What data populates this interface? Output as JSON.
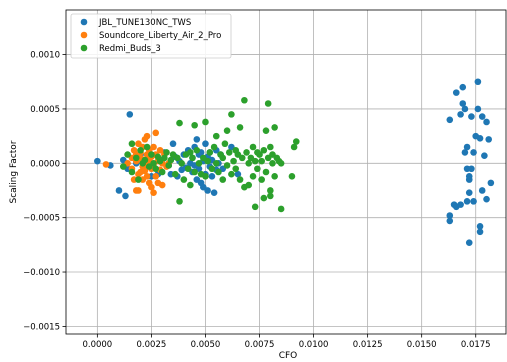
{
  "chart_data": {
    "type": "scatter",
    "xlabel": "CFO",
    "ylabel": "Scaling Factor",
    "xlim": [
      -0.00145,
      0.0189
    ],
    "ylim": [
      -0.00157,
      0.00141
    ],
    "xticks": [
      0.0,
      0.0025,
      0.005,
      0.0075,
      0.01,
      0.0125,
      0.015,
      0.0175
    ],
    "xtick_labels": [
      "0.0000",
      "0.0025",
      "0.0050",
      "0.0075",
      "0.0100",
      "0.0125",
      "0.0150",
      "0.0175"
    ],
    "yticks": [
      -0.0015,
      -0.001,
      -0.0005,
      0.0,
      0.0005,
      0.001
    ],
    "ytick_labels": [
      "−0.0015",
      "−0.0010",
      "−0.0005",
      "0.0000",
      "0.0005",
      "0.0010"
    ],
    "grid": true,
    "legend_position": "top-left",
    "series": [
      {
        "name": "JBL_TUNE130NC_TWS",
        "color": "#1f77b4",
        "points": [
          [
            0.0,
            2e-05
          ],
          [
            0.0006,
            -2e-05
          ],
          [
            0.001,
            -0.00025
          ],
          [
            0.0012,
            3e-05
          ],
          [
            0.0013,
            -0.0003
          ],
          [
            0.0014,
            -5e-05
          ],
          [
            0.0015,
            0.00045
          ],
          [
            0.0018,
            0.0
          ],
          [
            0.002,
            8e-05
          ],
          [
            0.0022,
            -5e-05
          ],
          [
            0.0025,
            -0.00012
          ],
          [
            0.0028,
            -0.0001
          ],
          [
            0.003,
            3e-05
          ],
          [
            0.0031,
            0.0001
          ],
          [
            0.0033,
            -2e-05
          ],
          [
            0.0034,
            -0.0001
          ],
          [
            0.0035,
            0.00018
          ],
          [
            0.0036,
            6e-05
          ],
          [
            0.0037,
            -0.00012
          ],
          [
            0.0038,
            2e-05
          ],
          [
            0.0039,
            -6e-05
          ],
          [
            0.004,
            8e-05
          ],
          [
            0.0041,
            -4e-05
          ],
          [
            0.0042,
            0.00012
          ],
          [
            0.0043,
            0.0
          ],
          [
            0.0044,
            5e-05
          ],
          [
            0.0044,
            -8e-05
          ],
          [
            0.0045,
            0.00015
          ],
          [
            0.0045,
            -2e-05
          ],
          [
            0.0046,
            -0.00015
          ],
          [
            0.0046,
            0.00022
          ],
          [
            0.0047,
            8e-05
          ],
          [
            0.0047,
            -5e-05
          ],
          [
            0.0048,
            0.0001
          ],
          [
            0.0048,
            -0.00018
          ],
          [
            0.0049,
            2e-05
          ],
          [
            0.0049,
            -0.00022
          ],
          [
            0.005,
            0.00018
          ],
          [
            0.005,
            -0.0001
          ],
          [
            0.0051,
            6e-05
          ],
          [
            0.0051,
            -0.00025
          ],
          [
            0.0052,
            0.0001
          ],
          [
            0.0052,
            -3e-05
          ],
          [
            0.0053,
            3e-05
          ],
          [
            0.0053,
            -0.00012
          ],
          [
            0.0054,
            -0.00027
          ],
          [
            0.0055,
            0.00012
          ],
          [
            0.0055,
            -6e-05
          ],
          [
            0.0056,
            0.0
          ],
          [
            0.0057,
            8e-05
          ],
          [
            0.0058,
            -5e-05
          ],
          [
            0.0062,
            0.00015
          ],
          [
            0.0065,
            -0.0001
          ],
          [
            0.0163,
            0.0004
          ],
          [
            0.0163,
            -0.00048
          ],
          [
            0.0163,
            -0.00053
          ],
          [
            0.0165,
            -0.00038
          ],
          [
            0.0166,
            -0.0004
          ],
          [
            0.0166,
            0.00065
          ],
          [
            0.0168,
            -0.00038
          ],
          [
            0.0168,
            0.00045
          ],
          [
            0.0169,
            0.0007
          ],
          [
            0.0169,
            0.00055
          ],
          [
            0.017,
            0.0005
          ],
          [
            0.017,
            0.0001
          ],
          [
            0.0171,
            -5e-05
          ],
          [
            0.0171,
            0.00015
          ],
          [
            0.0171,
            -0.00035
          ],
          [
            0.0172,
            -0.00012
          ],
          [
            0.0172,
            -0.00015
          ],
          [
            0.0172,
            -0.00027
          ],
          [
            0.0172,
            -0.00073
          ],
          [
            0.0173,
            -5e-05
          ],
          [
            0.0173,
            0.00043
          ],
          [
            0.0174,
            0.0001
          ],
          [
            0.0174,
            -0.00035
          ],
          [
            0.0175,
            0.00025
          ],
          [
            0.0176,
            0.00075
          ],
          [
            0.0176,
            0.0005
          ],
          [
            0.0177,
            0.00023
          ],
          [
            0.0177,
            -0.00058
          ],
          [
            0.0177,
            -0.00063
          ],
          [
            0.0178,
            0.00043
          ],
          [
            0.0178,
            -0.00025
          ],
          [
            0.0179,
            7e-05
          ],
          [
            0.018,
            0.00038
          ],
          [
            0.018,
            -0.00033
          ],
          [
            0.0181,
            0.00022
          ],
          [
            0.0182,
            -0.00018
          ]
        ]
      },
      {
        "name": "Soundcore_Liberty_Air_2_Pro",
        "color": "#ff7f0e",
        "points": [
          [
            0.0004,
            -1e-05
          ],
          [
            0.0014,
            0.0
          ],
          [
            0.0016,
            5e-05
          ],
          [
            0.0016,
            -5e-05
          ],
          [
            0.0017,
            0.00012
          ],
          [
            0.0017,
            -0.00015
          ],
          [
            0.0018,
            2e-05
          ],
          [
            0.0018,
            -0.00025
          ],
          [
            0.0018,
            8e-05
          ],
          [
            0.0019,
            -0.0001
          ],
          [
            0.0019,
            0.00018
          ],
          [
            0.0019,
            -0.00025
          ],
          [
            0.002,
            5e-05
          ],
          [
            0.002,
            -8e-05
          ],
          [
            0.002,
            0.0001
          ],
          [
            0.0021,
            2e-05
          ],
          [
            0.0021,
            -3e-05
          ],
          [
            0.0021,
            0.00015
          ],
          [
            0.0021,
            -0.00015
          ],
          [
            0.0022,
            0.00022
          ],
          [
            0.0022,
            0.0
          ],
          [
            0.0022,
            -7e-05
          ],
          [
            0.0023,
            8e-05
          ],
          [
            0.0023,
            -0.00012
          ],
          [
            0.0023,
            0.00025
          ],
          [
            0.0024,
            3e-05
          ],
          [
            0.0024,
            -0.00018
          ],
          [
            0.0024,
            0.00012
          ],
          [
            0.0025,
            -5e-05
          ],
          [
            0.0025,
            6e-05
          ],
          [
            0.0025,
            -0.00022
          ],
          [
            0.0026,
            0.00015
          ],
          [
            0.0026,
            -2e-05
          ],
          [
            0.0026,
            -0.00027
          ],
          [
            0.0027,
            8e-05
          ],
          [
            0.0027,
            -0.00012
          ],
          [
            0.0027,
            0.00028
          ],
          [
            0.0028,
            2e-05
          ],
          [
            0.0028,
            -0.00018
          ],
          [
            0.0029,
            0.00012
          ],
          [
            0.0029,
            -6e-05
          ],
          [
            0.003,
            0.0
          ],
          [
            0.003,
            -0.0002
          ],
          [
            0.0031,
            8e-05
          ],
          [
            0.0032,
            -3e-05
          ],
          [
            0.0033,
            0.0
          ]
        ]
      },
      {
        "name": "Redmi_Buds_3",
        "color": "#2ca02c",
        "points": [
          [
            0.0012,
            -3e-05
          ],
          [
            0.0014,
            8e-05
          ],
          [
            0.0016,
            0.00018
          ],
          [
            0.0016,
            -8e-05
          ],
          [
            0.0018,
            5e-05
          ],
          [
            0.0019,
            -0.00015
          ],
          [
            0.002,
            0.00012
          ],
          [
            0.0021,
            0.0
          ],
          [
            0.0022,
            3e-05
          ],
          [
            0.0023,
            0.00015
          ],
          [
            0.0024,
            -3e-05
          ],
          [
            0.0025,
            8e-05
          ],
          [
            0.0026,
            0.0
          ],
          [
            0.0027,
            -5e-05
          ],
          [
            0.0028,
            6e-05
          ],
          [
            0.0029,
            2e-05
          ],
          [
            0.003,
            -8e-05
          ],
          [
            0.0031,
            5e-05
          ],
          [
            0.0032,
            0.0001
          ],
          [
            0.0033,
            -2e-05
          ],
          [
            0.0034,
            3e-05
          ],
          [
            0.0035,
            8e-05
          ],
          [
            0.0036,
            -0.0001
          ],
          [
            0.0037,
            5e-05
          ],
          [
            0.0038,
            0.00037
          ],
          [
            0.0038,
            -0.00035
          ],
          [
            0.0039,
            0.0
          ],
          [
            0.004,
            -0.00015
          ],
          [
            0.0041,
            8e-05
          ],
          [
            0.0042,
            -5e-05
          ],
          [
            0.0043,
            0.0001
          ],
          [
            0.0043,
            -0.0002
          ],
          [
            0.0044,
            5e-05
          ],
          [
            0.0045,
            0.00035
          ],
          [
            0.0045,
            -8e-05
          ],
          [
            0.0046,
            0.00012
          ],
          [
            0.0047,
            0.0
          ],
          [
            0.0048,
            -0.0001
          ],
          [
            0.0049,
            5e-05
          ],
          [
            0.005,
            0.00038
          ],
          [
            0.005,
            -0.00012
          ],
          [
            0.0051,
            2e-05
          ],
          [
            0.0052,
            0.0001
          ],
          [
            0.0053,
            -5e-05
          ],
          [
            0.0054,
            0.00015
          ],
          [
            0.0055,
            0.0
          ],
          [
            0.0055,
            0.00025
          ],
          [
            0.0056,
            -8e-05
          ],
          [
            0.0057,
            8e-05
          ],
          [
            0.0058,
            -0.00015
          ],
          [
            0.0058,
            5e-05
          ],
          [
            0.0059,
            0.00018
          ],
          [
            0.006,
            -2e-05
          ],
          [
            0.006,
            0.0003
          ],
          [
            0.0061,
            0.0001
          ],
          [
            0.0062,
            -0.0001
          ],
          [
            0.0062,
            0.00045
          ],
          [
            0.0063,
            2e-05
          ],
          [
            0.0064,
            0.00012
          ],
          [
            0.0064,
            -5e-05
          ],
          [
            0.0065,
            8e-05
          ],
          [
            0.0066,
            0.00033
          ],
          [
            0.0066,
            -0.00015
          ],
          [
            0.0067,
            5e-05
          ],
          [
            0.0068,
            0.00058
          ],
          [
            0.0068,
            -0.00022
          ],
          [
            0.0069,
            0.0001
          ],
          [
            0.007,
            0.0
          ],
          [
            0.007,
            -0.0002
          ],
          [
            0.0071,
            5e-05
          ],
          [
            0.0072,
            0.00015
          ],
          [
            0.0072,
            -0.00012
          ],
          [
            0.0073,
            -0.0004
          ],
          [
            0.0073,
            2e-05
          ],
          [
            0.0074,
            0.0001
          ],
          [
            0.0074,
            -5e-05
          ],
          [
            0.0075,
            8e-05
          ],
          [
            0.0076,
            -0.00015
          ],
          [
            0.0076,
            2e-05
          ],
          [
            0.0077,
            -0.00032
          ],
          [
            0.0077,
            0.00012
          ],
          [
            0.0078,
            0.0003
          ],
          [
            0.0078,
            -8e-05
          ],
          [
            0.0079,
            0.00055
          ],
          [
            0.0079,
            5e-05
          ],
          [
            0.008,
            -0.00025
          ],
          [
            0.008,
            0.00015
          ],
          [
            0.008,
            -0.0003
          ],
          [
            0.0081,
            8e-05
          ],
          [
            0.0081,
            0.0
          ],
          [
            0.0082,
            0.00033
          ],
          [
            0.0082,
            -0.00012
          ],
          [
            0.0083,
            5e-05
          ],
          [
            0.0084,
            2e-05
          ],
          [
            0.0085,
            -0.00042
          ],
          [
            0.0085,
            0.0
          ],
          [
            0.009,
            -0.00012
          ],
          [
            0.0091,
            0.00015
          ],
          [
            0.0092,
            0.0002
          ]
        ]
      }
    ]
  }
}
